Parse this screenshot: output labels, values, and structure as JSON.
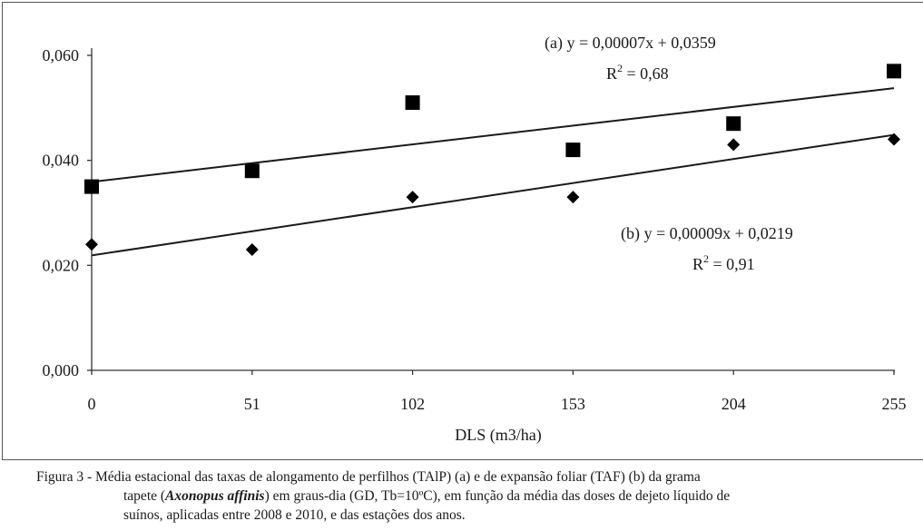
{
  "chart_data": {
    "type": "scatter",
    "xlabel": "DLS (m3/ha)",
    "ylabel": "",
    "x_ticks": [
      "0",
      "51",
      "102",
      "153",
      "204",
      "255"
    ],
    "y_ticks": [
      "0,000",
      "0,020",
      "0,040",
      "0,060"
    ],
    "xlim": [
      0,
      255
    ],
    "ylim": [
      0,
      0.06
    ],
    "grid": false,
    "series": [
      {
        "id": "a",
        "marker": "square",
        "color": "#000000",
        "x": [
          0,
          51,
          102,
          153,
          204,
          255
        ],
        "y": [
          0.035,
          0.038,
          0.051,
          0.042,
          0.047,
          0.057
        ],
        "trend": {
          "slope": 7e-05,
          "intercept": 0.0359
        },
        "equation": "(a) y = 0,00007x + 0,0359",
        "r2_prefix": "R",
        "r2_exp": "2",
        "r2_value": " = 0,68"
      },
      {
        "id": "b",
        "marker": "diamond",
        "color": "#000000",
        "x": [
          0,
          51,
          102,
          153,
          204,
          255
        ],
        "y": [
          0.024,
          0.023,
          0.033,
          0.033,
          0.043,
          0.044
        ],
        "trend": {
          "slope": 9e-05,
          "intercept": 0.0219
        },
        "equation": "(b) y = 0,00009x + 0,0219",
        "r2_prefix": "R",
        "r2_exp": "2",
        "r2_value": " = 0,91"
      }
    ]
  },
  "caption": {
    "line1": "Figura 3 - Média estacional das taxas de alongamento de perfilhos (TAlP) (a) e de expansão foliar (TAF) (b) da grama",
    "line2_pre": "tapete (",
    "line2_species": "Axonopus affinis",
    "line2_post": ") em graus-dia (GD, Tb=10ºC), em função da média das doses de dejeto líquido de",
    "line3": "suínos, aplicadas entre 2008 e 2010, e das estações dos anos."
  }
}
